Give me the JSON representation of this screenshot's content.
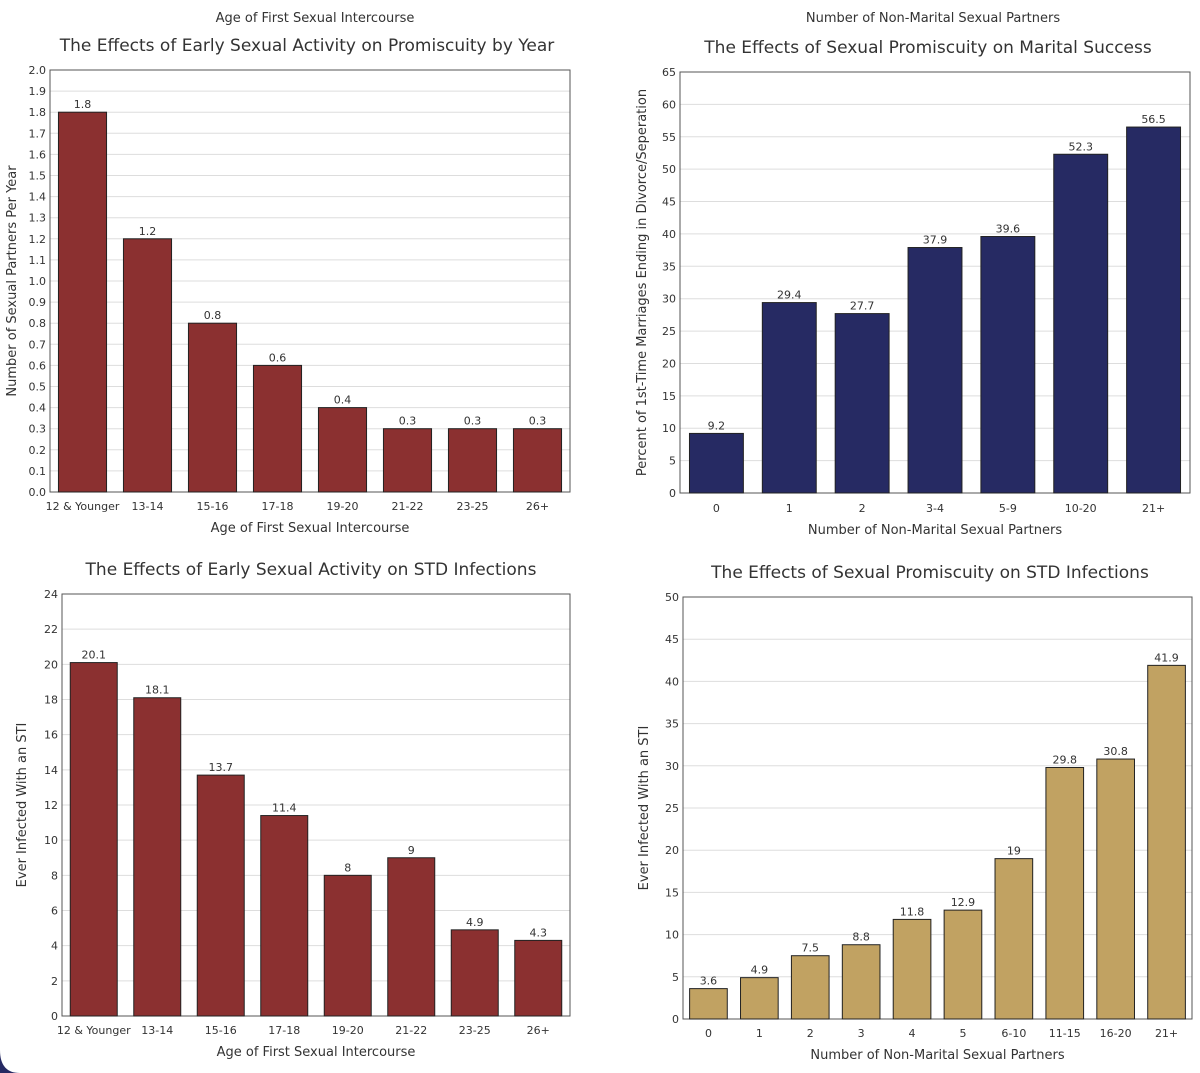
{
  "top_strip": {
    "left_label": "Age of First Sexual Intercourse",
    "right_label": "Number of Non-Marital Sexual Partners"
  },
  "chart_data": [
    {
      "type": "bar",
      "title": "The Effects of Early Sexual Activity on Promiscuity by Year",
      "xlabel": "Age of First Sexual Intercourse",
      "ylabel": "Number of Sexual Partners Per Year",
      "categories": [
        "12 & Younger",
        "13-14",
        "15-16",
        "17-18",
        "19-20",
        "21-22",
        "23-25",
        "26+"
      ],
      "values": [
        1.8,
        1.2,
        0.8,
        0.6,
        0.4,
        0.3,
        0.3,
        0.3
      ],
      "ylim": [
        0,
        2.0
      ],
      "ystep": 0.1,
      "ytick_decimals": 1,
      "grid": true,
      "color": "#8b3030"
    },
    {
      "type": "bar",
      "title": "The Effects of Sexual Promiscuity on Marital Success",
      "xlabel": "Number of Non-Marital Sexual Partners",
      "ylabel": "Percent of 1st-Time Marriages Ending in Divorce/Seperation",
      "categories": [
        "0",
        "1",
        "2",
        "3-4",
        "5-9",
        "10-20",
        "21+"
      ],
      "values": [
        9.2,
        29.4,
        27.7,
        37.9,
        39.6,
        52.3,
        56.5
      ],
      "ylim": [
        0,
        65
      ],
      "ystep": 5,
      "ytick_decimals": 0,
      "grid": true,
      "color": "#262a63"
    },
    {
      "type": "bar",
      "title": "The Effects of Early Sexual Activity on STD Infections",
      "xlabel": "Age of First Sexual Intercourse",
      "ylabel": "Ever Infected With an STI",
      "categories": [
        "12 & Younger",
        "13-14",
        "15-16",
        "17-18",
        "19-20",
        "21-22",
        "23-25",
        "26+"
      ],
      "values": [
        20.1,
        18.1,
        13.7,
        11.4,
        8,
        9,
        4.9,
        4.3
      ],
      "ylim": [
        0,
        24
      ],
      "ystep": 2,
      "ytick_decimals": 0,
      "grid": true,
      "color": "#8b3030"
    },
    {
      "type": "bar",
      "title": "The Effects of Sexual Promiscuity on STD Infections",
      "xlabel": "Number of Non-Marital Sexual Partners",
      "ylabel": "Ever Infected With an STI",
      "categories": [
        "0",
        "1",
        "2",
        "3",
        "4",
        "5",
        "6-10",
        "11-15",
        "16-20",
        "21+"
      ],
      "values": [
        3.6,
        4.9,
        7.5,
        8.8,
        11.8,
        12.9,
        19,
        29.8,
        30.8,
        41.9
      ],
      "ylim": [
        0,
        50
      ],
      "ystep": 5,
      "ytick_decimals": 0,
      "grid": true,
      "color": "#c1a262"
    }
  ]
}
